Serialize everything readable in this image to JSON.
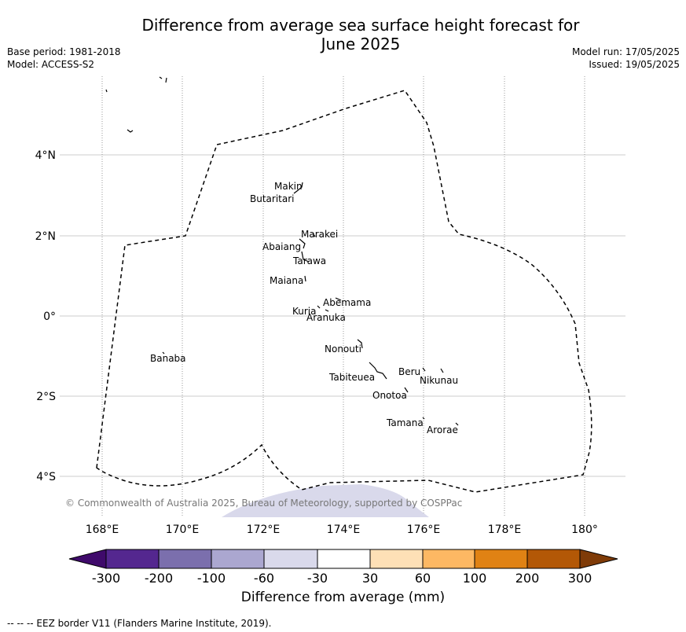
{
  "title_line1": "Difference from average sea surface height forecast for",
  "title_line2": "June 2025",
  "meta_left": {
    "base_period": "Base period: 1981-2018",
    "model": "Model: ACCESS-S2"
  },
  "meta_right": {
    "model_run": "Model run: 17/05/2025",
    "issued": "Issued: 19/05/2025"
  },
  "map": {
    "lon_ticks": [
      "168°E",
      "170°E",
      "172°E",
      "174°E",
      "176°E",
      "178°E",
      "180°"
    ],
    "lat_ticks": [
      "4°N",
      "2°N",
      "0°",
      "2°S",
      "4°S"
    ],
    "places": [
      "Makin",
      "Butaritari",
      "Marakei",
      "Abaiang",
      "Tarawa",
      "Maiana",
      "Abemama",
      "Kuria",
      "Aranuka",
      "Nonouti",
      "Banaba",
      "Beru",
      "Nikunau",
      "Tabiteuea",
      "Onotoa",
      "Tamana",
      "Arorae"
    ],
    "copyright": "© Commonwealth of Australia 2025, Bureau of Meteorology, supported by COSPPac"
  },
  "colorbar": {
    "label": "Difference from average (mm)",
    "tick_labels": [
      "-300",
      "-200",
      "-100",
      "-60",
      "-30",
      "30",
      "60",
      "100",
      "200",
      "300"
    ],
    "colors": [
      "#3f0a6b",
      "#54278f",
      "#7b6fad",
      "#aba7d0",
      "#d9d9eb",
      "#ffffff",
      "#fee0b6",
      "#fdb863",
      "#e08214",
      "#b35806",
      "#7f3b08"
    ]
  },
  "eez_note": "--  --  -- EEZ border V11 (Flanders Marine Institute, 2019)."
}
